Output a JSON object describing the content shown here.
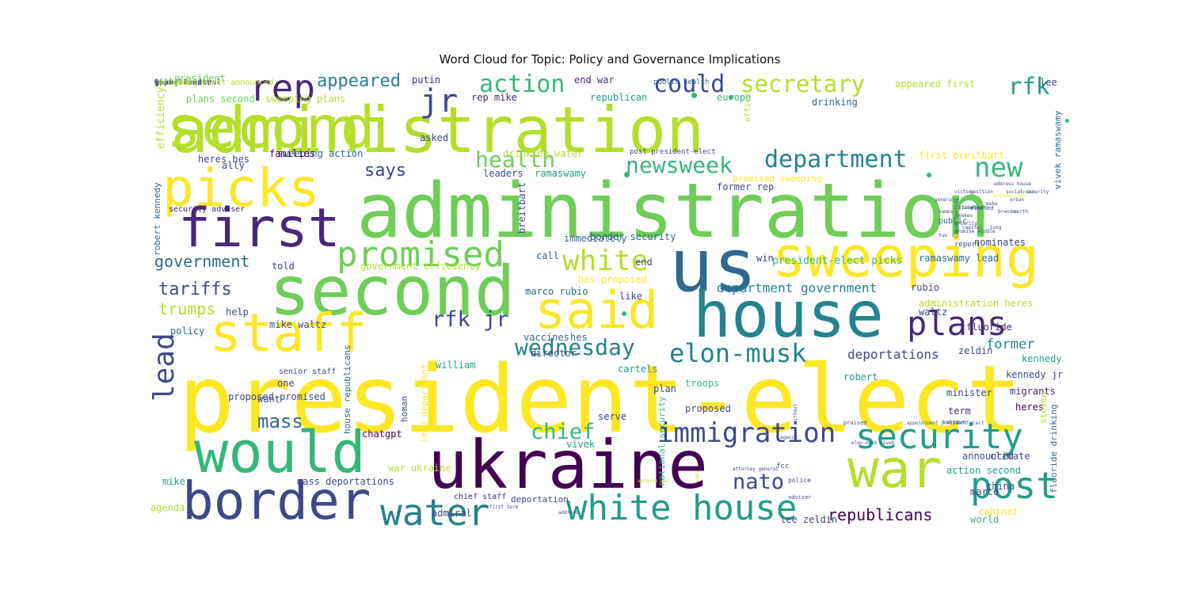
{
  "title": "Word Cloud for Topic: Policy and Governance Implications",
  "colors": {
    "yellow": "#fde725",
    "lime": "#b5de2b",
    "green": "#6ece58",
    "emerald": "#35b779",
    "teal": "#1f9e89",
    "cyan": "#26828e",
    "blue": "#31688e",
    "indigo": "#3e4989",
    "violet": "#482878",
    "purple": "#440154"
  },
  "words": [
    {
      "text": "president-elect",
      "color": "yellow"
    },
    {
      "text": "administration",
      "color": "green"
    },
    {
      "text": "administration",
      "color": "lime"
    },
    {
      "text": "second",
      "color": "lime"
    },
    {
      "text": "ukraine",
      "color": "purple"
    },
    {
      "text": "second",
      "color": "green"
    },
    {
      "text": "us",
      "color": "blue"
    },
    {
      "text": "house",
      "color": "cyan"
    },
    {
      "text": "would",
      "color": "emerald"
    },
    {
      "text": "picks",
      "color": "yellow"
    },
    {
      "text": "first",
      "color": "violet"
    },
    {
      "text": "border",
      "color": "indigo"
    },
    {
      "text": "sweeping",
      "color": "yellow"
    },
    {
      "text": "war",
      "color": "lime"
    },
    {
      "text": "staff",
      "color": "yellow"
    },
    {
      "text": "said",
      "color": "yellow"
    },
    {
      "text": "security",
      "color": "teal"
    },
    {
      "text": "post",
      "color": "teal"
    },
    {
      "text": "white house",
      "color": "teal"
    },
    {
      "text": "promised",
      "color": "green"
    },
    {
      "text": "plans",
      "color": "violet"
    },
    {
      "text": "water",
      "color": "cyan"
    },
    {
      "text": "rep",
      "color": "violet"
    },
    {
      "text": "jr",
      "color": "indigo"
    },
    {
      "text": "lead",
      "color": "indigo"
    },
    {
      "text": "immigration",
      "color": "indigo"
    },
    {
      "text": "elon-musk",
      "color": "cyan"
    },
    {
      "text": "white",
      "color": "lime"
    },
    {
      "text": "new",
      "color": "emerald"
    },
    {
      "text": "department",
      "color": "cyan"
    },
    {
      "text": "secretary",
      "color": "lime"
    },
    {
      "text": "could",
      "color": "indigo"
    },
    {
      "text": "action",
      "color": "emerald"
    },
    {
      "text": "appeared",
      "color": "cyan"
    },
    {
      "text": "health",
      "color": "green"
    },
    {
      "text": "newsweek",
      "color": "emerald"
    },
    {
      "text": "wednesday",
      "color": "cyan"
    },
    {
      "text": "rfk jr",
      "color": "indigo"
    },
    {
      "text": "chief",
      "color": "emerald"
    },
    {
      "text": "nato",
      "color": "indigo"
    },
    {
      "text": "rfk",
      "color": "teal"
    },
    {
      "text": "government",
      "color": "blue"
    },
    {
      "text": "tariffs",
      "color": "indigo"
    },
    {
      "text": "mass",
      "color": "blue"
    },
    {
      "text": "trumps",
      "color": "lime"
    },
    {
      "text": "says",
      "color": "indigo"
    },
    {
      "text": "republicans",
      "color": "purple"
    },
    {
      "text": "former",
      "color": "cyan"
    },
    {
      "text": "deportations",
      "color": "indigo"
    },
    {
      "text": "department government",
      "color": "cyan"
    },
    {
      "text": "president-elect picks",
      "color": "emerald"
    },
    {
      "text": "efficiency",
      "color": "lime"
    },
    {
      "text": "vivek ramaswamy",
      "color": "blue"
    },
    {
      "text": "robert kennedy",
      "color": "blue"
    },
    {
      "text": "house republicans",
      "color": "blue"
    },
    {
      "text": "national security",
      "color": "emerald"
    },
    {
      "text": "fluoride drinking",
      "color": "blue"
    },
    {
      "text": "president",
      "color": "green"
    },
    {
      "text": "plans second",
      "color": "green"
    },
    {
      "text": "sweeping plans",
      "color": "lime"
    },
    {
      "text": "putin",
      "color": "violet"
    },
    {
      "text": "end war",
      "color": "violet"
    },
    {
      "text": "rep mike",
      "color": "violet"
    },
    {
      "text": "republican",
      "color": "teal"
    },
    {
      "text": "public health",
      "color": "blue"
    },
    {
      "text": "europe",
      "color": "emerald"
    },
    {
      "text": "drinking",
      "color": "blue"
    },
    {
      "text": "appeared first",
      "color": "lime"
    },
    {
      "text": "lee",
      "color": "indigo"
    },
    {
      "text": "office",
      "color": "lime"
    },
    {
      "text": "first breitbart",
      "color": "yellow"
    },
    {
      "text": "drinking water",
      "color": "lime"
    },
    {
      "text": "post president-elect",
      "color": "indigo"
    },
    {
      "text": "sweeping action",
      "color": "blue"
    },
    {
      "text": "heres hes",
      "color": "indigo"
    },
    {
      "text": "families",
      "color": "purple"
    },
    {
      "text": "ally",
      "color": "indigo"
    },
    {
      "text": "leaders",
      "color": "indigo"
    },
    {
      "text": "ramaswamy",
      "color": "teal"
    },
    {
      "text": "promised sweeping",
      "color": "yellow"
    },
    {
      "text": "former rep",
      "color": "indigo"
    },
    {
      "text": "breitbart",
      "color": "indigo"
    },
    {
      "text": "security adviser",
      "color": "violet"
    },
    {
      "text": "immediately",
      "color": "blue"
    },
    {
      "text": "call",
      "color": "blue"
    },
    {
      "text": "end",
      "color": "indigo"
    },
    {
      "text": "win",
      "color": "indigo"
    },
    {
      "text": "nominates",
      "color": "indigo"
    },
    {
      "text": "ramaswamy lead",
      "color": "blue"
    },
    {
      "text": "administration heres",
      "color": "lime"
    },
    {
      "text": "government efficiency",
      "color": "lime"
    },
    {
      "text": "told",
      "color": "indigo"
    },
    {
      "text": "hes proposed",
      "color": "yellow"
    },
    {
      "text": "like",
      "color": "indigo"
    },
    {
      "text": "marco rubio",
      "color": "blue"
    },
    {
      "text": "rubio",
      "color": "indigo"
    },
    {
      "text": "waltz",
      "color": "indigo"
    },
    {
      "text": "fluoride",
      "color": "violet"
    },
    {
      "text": "help",
      "color": "indigo"
    },
    {
      "text": "policy",
      "color": "blue"
    },
    {
      "text": "mike waltz",
      "color": "indigo"
    },
    {
      "text": "vaccines",
      "color": "blue"
    },
    {
      "text": "hes",
      "color": "blue"
    },
    {
      "text": "director",
      "color": "indigo"
    },
    {
      "text": "william",
      "color": "teal"
    },
    {
      "text": "zeldin",
      "color": "indigo"
    },
    {
      "text": "kennedy",
      "color": "teal"
    },
    {
      "text": "cartels",
      "color": "teal"
    },
    {
      "text": "troops",
      "color": "emerald"
    },
    {
      "text": "kennedy jr",
      "color": "indigo"
    },
    {
      "text": "one",
      "color": "indigo"
    },
    {
      "text": "plan",
      "color": "indigo"
    },
    {
      "text": "robert",
      "color": "teal"
    },
    {
      "text": "minister",
      "color": "indigo"
    },
    {
      "text": "migrants",
      "color": "violet"
    },
    {
      "text": "heres",
      "color": "purple"
    },
    {
      "text": "want",
      "color": "indigo"
    },
    {
      "text": "proposed",
      "color": "indigo"
    },
    {
      "text": "term",
      "color": "violet"
    },
    {
      "text": "steven",
      "color": "lime"
    },
    {
      "text": "proposed promised",
      "color": "indigo"
    },
    {
      "text": "chatgpt",
      "color": "purple"
    },
    {
      "text": "serve",
      "color": "indigo"
    },
    {
      "text": "homan",
      "color": "indigo"
    },
    {
      "text": "lead department",
      "color": "yellow"
    },
    {
      "text": "war ukraine",
      "color": "lime"
    },
    {
      "text": "vivek",
      "color": "teal"
    },
    {
      "text": "announced",
      "color": "indigo"
    },
    {
      "text": "climate",
      "color": "indigo"
    },
    {
      "text": "action second",
      "color": "teal"
    },
    {
      "text": "china",
      "color": "indigo"
    },
    {
      "text": "mike",
      "color": "teal"
    },
    {
      "text": "mass deportations",
      "color": "indigo"
    },
    {
      "text": "chief staff",
      "color": "violet"
    },
    {
      "text": "deportation",
      "color": "indigo"
    },
    {
      "text": "admiral",
      "color": "indigo"
    },
    {
      "text": "lee zeldin",
      "color": "indigo"
    },
    {
      "text": "agenda",
      "color": "lime"
    },
    {
      "text": "marco",
      "color": "indigo"
    },
    {
      "text": "cabinet",
      "color": "yellow"
    },
    {
      "text": "world",
      "color": "emerald"
    },
    {
      "text": "border security",
      "color": "blue"
    },
    {
      "text": "asked",
      "color": "indigo"
    },
    {
      "text": "public",
      "color": "blue"
    },
    {
      "text": "report",
      "color": "indigo"
    },
    {
      "text": "fcc",
      "color": "indigo"
    },
    {
      "text": "police",
      "color": "indigo"
    },
    {
      "text": "adviser",
      "color": "indigo"
    },
    {
      "text": "first term",
      "color": "indigo"
    },
    {
      "text": "address",
      "color": "indigo"
    },
    {
      "text": "ways",
      "color": "lime"
    },
    {
      "text": "without",
      "color": "indigo"
    },
    {
      "text": "ukraine war",
      "color": "lime"
    },
    {
      "text": "attorney general",
      "color": "indigo"
    },
    {
      "text": "agency",
      "color": "indigo"
    },
    {
      "text": "elon-musk vivek",
      "color": "indigo"
    },
    {
      "text": "praised",
      "color": "indigo"
    },
    {
      "text": "takeover",
      "color": "indigo"
    },
    {
      "text": "appointment president-elect",
      "color": "blue"
    },
    {
      "text": "elected",
      "color": "indigo"
    },
    {
      "text": "general",
      "color": "indigo"
    },
    {
      "text": "victory",
      "color": "indigo"
    },
    {
      "text": "investors",
      "color": "teal"
    },
    {
      "text": "names",
      "color": "indigo"
    },
    {
      "text": "issues warning",
      "color": "indigo"
    },
    {
      "text": "statehood",
      "color": "indigo"
    },
    {
      "text": "makes",
      "color": "indigo"
    },
    {
      "text": "priority",
      "color": "indigo"
    },
    {
      "text": "capitol",
      "color": "indigo"
    },
    {
      "text": "promise",
      "color": "indigo"
    },
    {
      "text": "tue",
      "color": "indigo"
    },
    {
      "text": "middle",
      "color": "indigo"
    },
    {
      "text": "long",
      "color": "indigo"
    },
    {
      "text": "north",
      "color": "indigo"
    },
    {
      "text": "urban",
      "color": "emerald"
    },
    {
      "text": "orban",
      "color": "indigo"
    },
    {
      "text": "make",
      "color": "indigo"
    },
    {
      "text": "position",
      "color": "indigo"
    },
    {
      "text": "address house",
      "color": "indigo"
    },
    {
      "text": "brendan",
      "color": "indigo"
    },
    {
      "text": "brendan carr",
      "color": "yellow"
    },
    {
      "text": "social security",
      "color": "indigo"
    },
    {
      "text": "senior staff",
      "color": "indigo"
    },
    {
      "text": "according",
      "color": "lime"
    },
    {
      "text": "top election",
      "color": "indigo"
    },
    {
      "text": "senate",
      "color": "lime"
    },
    {
      "text": "house senior",
      "color": "indigo"
    },
    {
      "text": "world leaders",
      "color": "indigo"
    },
    {
      "text": "waltz national",
      "color": "indigo"
    },
    {
      "text": "ahead",
      "color": "teal"
    },
    {
      "text": "going",
      "color": "teal"
    },
    {
      "text": "appointment",
      "color": "indigo"
    },
    {
      "text": "give",
      "color": "indigo"
    },
    {
      "text": "president-elect announced",
      "color": "lime"
    },
    {
      "text": "carr",
      "color": "indigo"
    },
    {
      "text": "mean",
      "color": "indigo"
    },
    {
      "text": "best",
      "color": "indigo"
    },
    {
      "text": "national",
      "color": "lime"
    },
    {
      "text": "§",
      "color": "indigo"
    }
  ]
}
